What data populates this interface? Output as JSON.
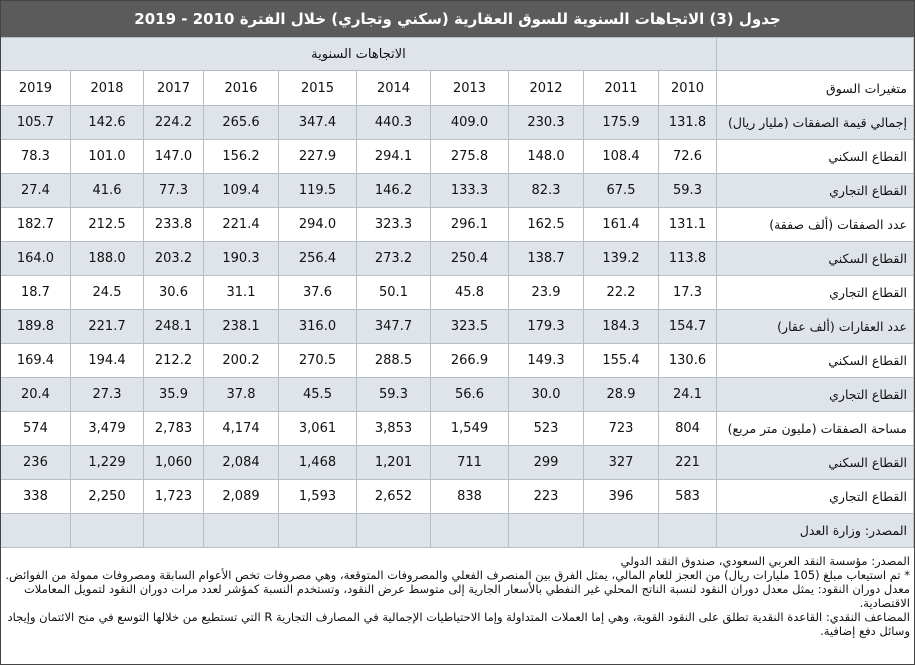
{
  "title": "جدول (3) الاتجاهات السنوية للسوق العقارية (سكني وتجاري) خلال الفترة 2010 - 2019",
  "table": {
    "group_header": "الاتجاهات السنوية",
    "label_header": "متغيرات السوق",
    "years": [
      "2010",
      "2011",
      "2012",
      "2013",
      "2014",
      "2015",
      "2016",
      "2017",
      "2018",
      "2019"
    ],
    "rows": [
      {
        "label": "إجمالي قيمة الصفقات (مليار ريال)",
        "values": [
          "131.8",
          "175.9",
          "230.3",
          "409.0",
          "440.3",
          "347.4",
          "265.6",
          "224.2",
          "142.6",
          "105.7"
        ]
      },
      {
        "label": "القطاع السكني",
        "values": [
          "72.6",
          "108.4",
          "148.0",
          "275.8",
          "294.1",
          "227.9",
          "156.2",
          "147.0",
          "101.0",
          "78.3"
        ]
      },
      {
        "label": "القطاع التجاري",
        "values": [
          "59.3",
          "67.5",
          "82.3",
          "133.3",
          "146.2",
          "119.5",
          "109.4",
          "77.3",
          "41.6",
          "27.4"
        ]
      },
      {
        "label": "عدد الصفقات (ألف صفقة)",
        "values": [
          "131.1",
          "161.4",
          "162.5",
          "296.1",
          "323.3",
          "294.0",
          "221.4",
          "233.8",
          "212.5",
          "182.7"
        ]
      },
      {
        "label": "القطاع السكني",
        "values": [
          "113.8",
          "139.2",
          "138.7",
          "250.4",
          "273.2",
          "256.4",
          "190.3",
          "203.2",
          "188.0",
          "164.0"
        ]
      },
      {
        "label": "القطاع التجاري",
        "values": [
          "17.3",
          "22.2",
          "23.9",
          "45.8",
          "50.1",
          "37.6",
          "31.1",
          "30.6",
          "24.5",
          "18.7"
        ]
      },
      {
        "label": "عدد العقارات (ألف عقار)",
        "values": [
          "154.7",
          "184.3",
          "179.3",
          "323.5",
          "347.7",
          "316.0",
          "238.1",
          "248.1",
          "221.7",
          "189.8"
        ]
      },
      {
        "label": "القطاع السكني",
        "values": [
          "130.6",
          "155.4",
          "149.3",
          "266.9",
          "288.5",
          "270.5",
          "200.2",
          "212.2",
          "194.4",
          "169.4"
        ]
      },
      {
        "label": "القطاع التجاري",
        "values": [
          "24.1",
          "28.9",
          "30.0",
          "56.6",
          "59.3",
          "45.5",
          "37.8",
          "35.9",
          "27.3",
          "20.4"
        ]
      },
      {
        "label": "مساحة الصفقات (مليون متر مربع)",
        "values": [
          "804",
          "723",
          "523",
          "1,549",
          "3,853",
          "3,061",
          "4,174",
          "2,783",
          "3,479",
          "574"
        ]
      },
      {
        "label": "القطاع السكني",
        "values": [
          "221",
          "327",
          "299",
          "711",
          "1,201",
          "1,468",
          "2,084",
          "1,060",
          "1,229",
          "236"
        ]
      },
      {
        "label": "القطاع التجاري",
        "values": [
          "583",
          "396",
          "223",
          "838",
          "2,652",
          "1,593",
          "2,089",
          "1,723",
          "2,250",
          "338"
        ]
      }
    ],
    "source": "المصدر: وزارة العدل"
  },
  "notes": [
    "المصدر: مؤسسة النقد العربي السعودي، صندوق النقد الدولي",
    "* تم استيعاب مبلغ (105 مليارات ريال) من العجز للعام المالي، يمثل الفرق بين المنصرف الفعلي والمصروفات المتوقعة، وهي مصروفات تخص الأعوام السابقة ومصروفات ممولة من الفوائض.",
    "معدل دوران النقود: يمثل معدل دوران النقود لنسبة الناتج المحلي غير النفطي بالأسعار الجارية إلى متوسط عرض النقود، وتستخدم النسبة كمؤشر لعدد مرات دوران النقود لتمويل المعاملات الاقتصادية.",
    "المضاعف النقدي: القاعدة النقدية تطلق على النقود القوية، وهي إما العملات المتداولة وإما الاحتياطيات الإجمالية في المصارف التجارية R التي تستطيع من خلالها التوسع في منح الائتمان وإيجاد وسائل دفع إضافية."
  ]
}
